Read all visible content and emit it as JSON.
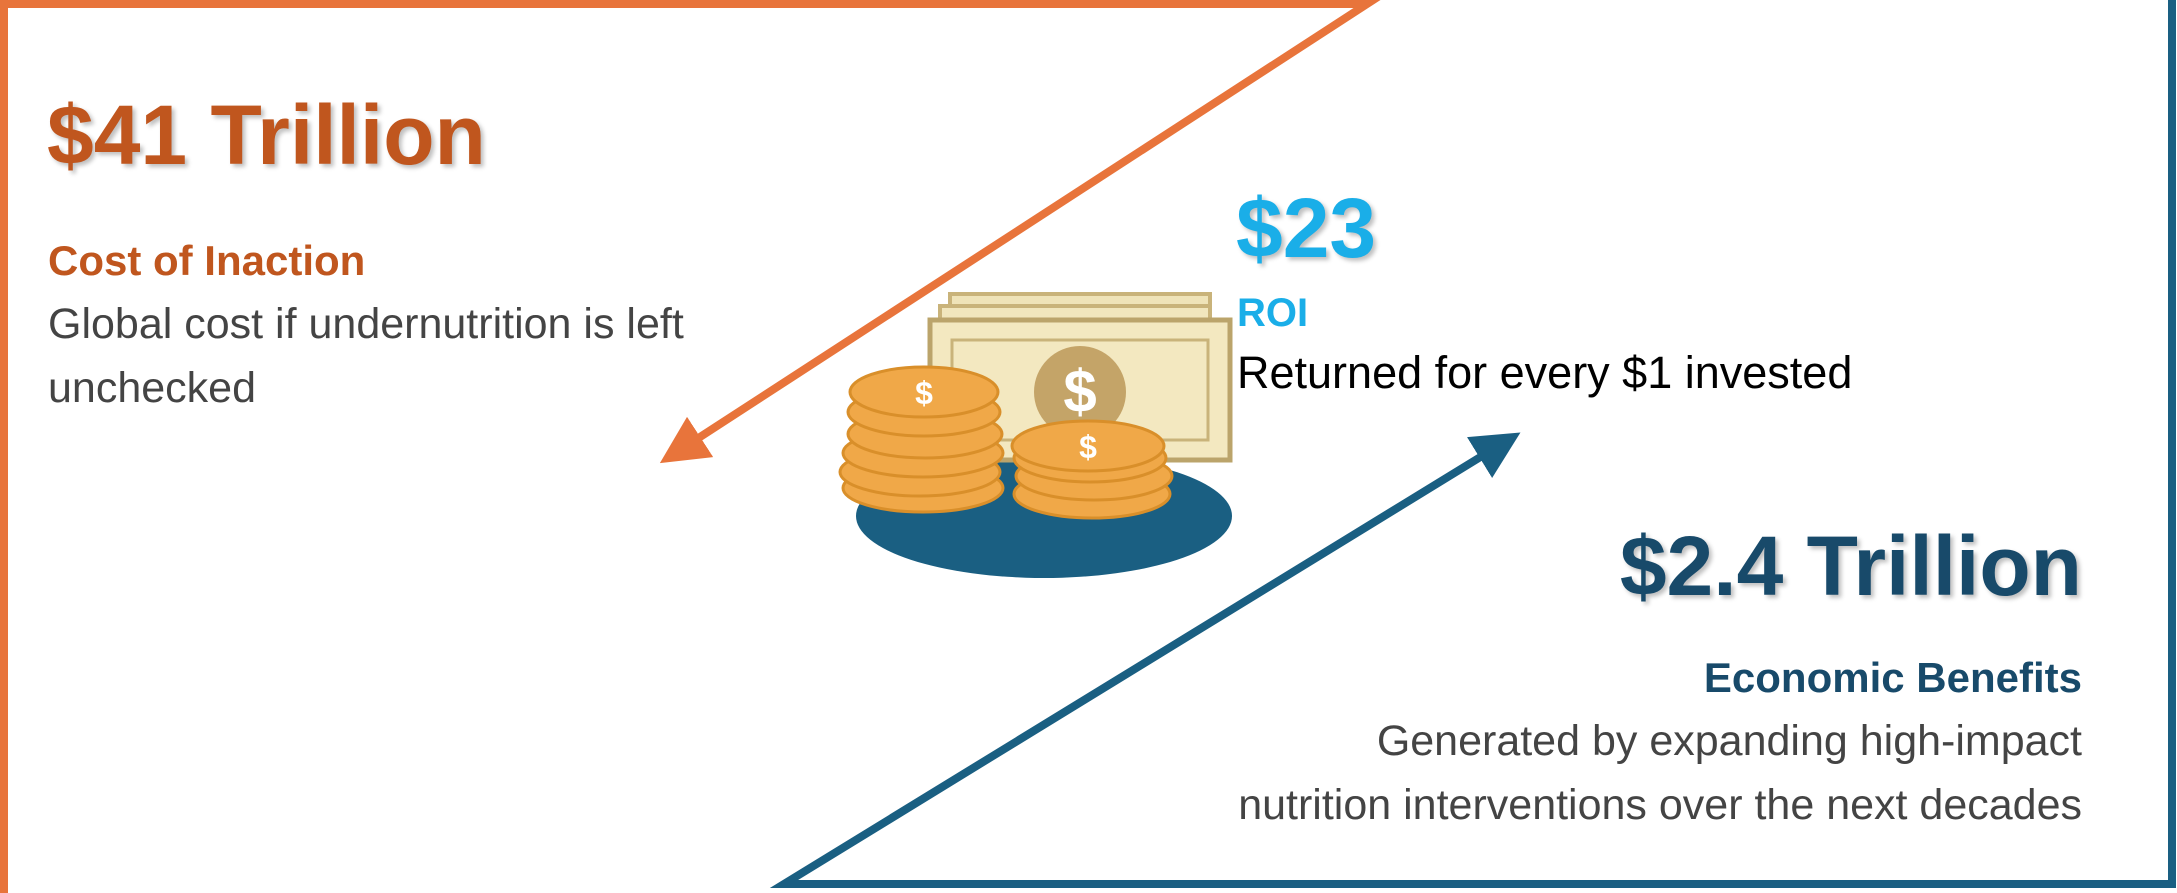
{
  "left": {
    "figure": "$41 Trillion",
    "heading": "Cost of Inaction",
    "description": [
      "Global cost if undernutrition is left",
      "unchecked"
    ]
  },
  "center": {
    "figure": "$23",
    "heading": "ROI",
    "description": "Returned for every $1 invested"
  },
  "right": {
    "figure": "$2.4 Trillion",
    "heading": "Economic Benefits",
    "description": [
      "Generated by expanding high-impact",
      "nutrition interventions over the next decades"
    ]
  }
}
